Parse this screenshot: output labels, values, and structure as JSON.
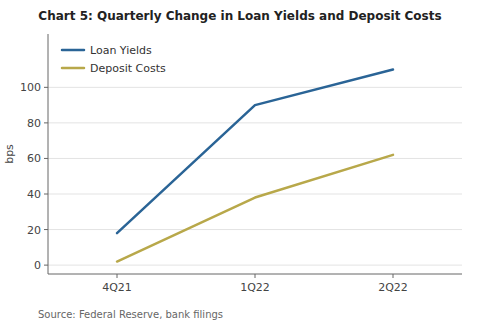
{
  "chart_data": {
    "type": "line",
    "title": "Chart 5: Quarterly Change in Loan Yields and Deposit Costs",
    "ylabel": "bps",
    "source": "Source: Federal Reserve, bank filings",
    "categories": [
      "4Q21",
      "1Q22",
      "2Q22"
    ],
    "series": [
      {
        "name": "Loan Yields",
        "color": "#2a6496",
        "values": [
          18,
          90,
          110
        ]
      },
      {
        "name": "Deposit Costs",
        "color": "#b8a84a",
        "values": [
          2,
          38,
          62
        ]
      }
    ],
    "ylim": [
      -5,
      130
    ],
    "yticks": [
      0,
      20,
      40,
      60,
      80,
      100
    ],
    "grid": true,
    "legend": "upper left"
  }
}
